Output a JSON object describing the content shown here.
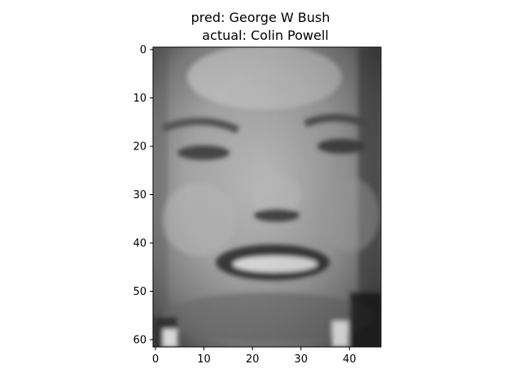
{
  "title": {
    "pred_line": "pred: George W Bush",
    "actual_line": "actual: Colin Powell"
  },
  "image": {
    "description_kind": "grayscale face thumbnail",
    "pixel_grid": {
      "cols": 47,
      "rows": 62
    },
    "colormap": "gray"
  },
  "axes": {
    "y_ticks": [
      "0",
      "10",
      "20",
      "30",
      "40",
      "50",
      "60"
    ],
    "x_ticks": [
      "0",
      "10",
      "20",
      "30",
      "40"
    ]
  }
}
